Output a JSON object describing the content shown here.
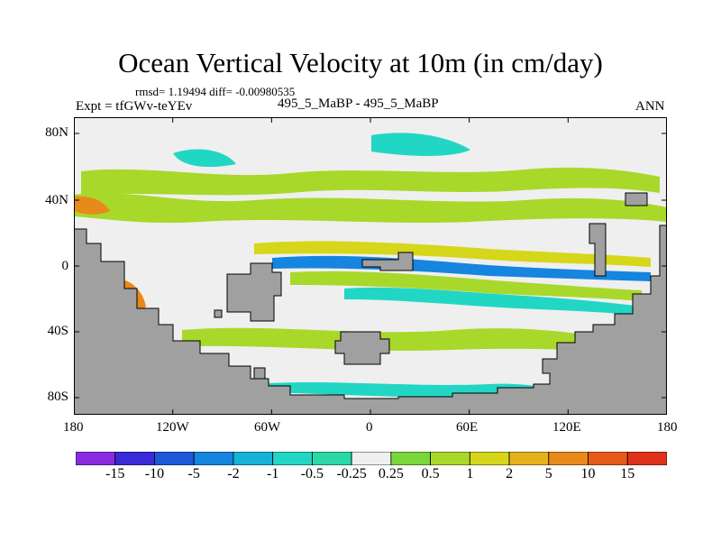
{
  "title": "Ocean Vertical Velocity at 10m (in cm/day)",
  "stats": "rmsd= 1.19494 diff= -0.00980535",
  "expt": "Expt = tfGWv-teYEv",
  "comparison": "495_5_MaBP - 495_5_MaBP",
  "season": "ANN",
  "lat_labels": [
    "80N",
    "40N",
    "0",
    "40S",
    "80S"
  ],
  "lon_labels": [
    "180",
    "120W",
    "60W",
    "0",
    "60E",
    "120E",
    "180"
  ],
  "colorbar": {
    "labels": [
      "-15",
      "-10",
      "-5",
      "-2",
      "-1",
      "-0.5",
      "-0.25",
      "0.25",
      "0.5",
      "1",
      "2",
      "5",
      "10",
      "15"
    ],
    "colors": [
      "#8a2be2",
      "#3a2ad8",
      "#1d58d8",
      "#1585e0",
      "#14b2d6",
      "#22d6c4",
      "#2ad8a8",
      "#f0f0f0",
      "#7ad63a",
      "#a8d82a",
      "#d6d61a",
      "#e6b21a",
      "#e88a1a",
      "#e85a1a",
      "#e0321a"
    ]
  },
  "palette": {
    "land": "#a0a0a0",
    "ocean_neutral": "#efefef"
  }
}
